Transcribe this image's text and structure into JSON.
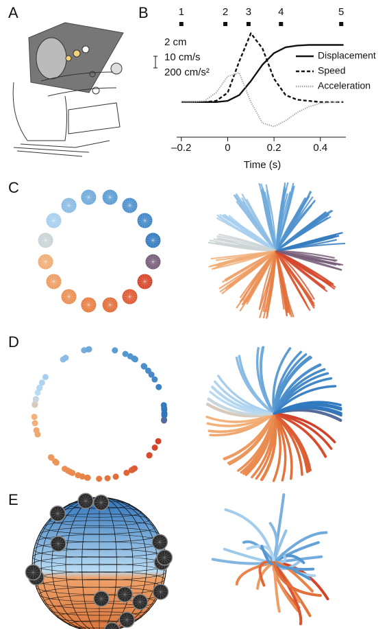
{
  "panel_labels": [
    "A",
    "B",
    "C",
    "D",
    "E"
  ],
  "chart_data": {
    "type": "line",
    "x": [
      -0.2,
      -0.15,
      -0.1,
      -0.05,
      0,
      0.05,
      0.1,
      0.15,
      0.2,
      0.25,
      0.3,
      0.35,
      0.4,
      0.45,
      0.5
    ],
    "series": [
      {
        "name": "Displacement",
        "color": "#111111",
        "style": "solid",
        "values": [
          0,
          0,
          0,
          0,
          0.1,
          0.6,
          1.8,
          3.2,
          4.2,
          4.7,
          4.85,
          4.9,
          4.9,
          4.9,
          4.9
        ]
      },
      {
        "name": "Speed",
        "color": "#111111",
        "style": "dashed",
        "values": [
          0,
          0,
          0,
          0.1,
          0.8,
          3.5,
          5.9,
          4.6,
          2.0,
          0.6,
          0.2,
          0.1,
          0,
          0,
          0
        ]
      },
      {
        "name": "Acceleration",
        "color": "#aaaaaa",
        "style": "dotted",
        "values": [
          0,
          0,
          0.1,
          0.8,
          2.2,
          2.5,
          0,
          -1.8,
          -2.1,
          -1.6,
          -0.9,
          -0.4,
          -0.1,
          0,
          0
        ]
      }
    ],
    "scale_bar_labels": [
      "2 cm",
      "10 cm/s",
      "200 cm/s²"
    ],
    "events": {
      "labels": [
        "1",
        "2",
        "3",
        "4",
        "5"
      ],
      "x": [
        -0.2,
        -0.01,
        0.09,
        0.23,
        0.49
      ]
    },
    "xlabel": "Time (s)",
    "xlim": [
      -0.22,
      0.51
    ],
    "ylim": [
      -2.6,
      6.4
    ],
    "xticks": [
      {
        "value": -0.2,
        "label": "–0.2"
      },
      0,
      0.2,
      0.4
    ]
  }
}
